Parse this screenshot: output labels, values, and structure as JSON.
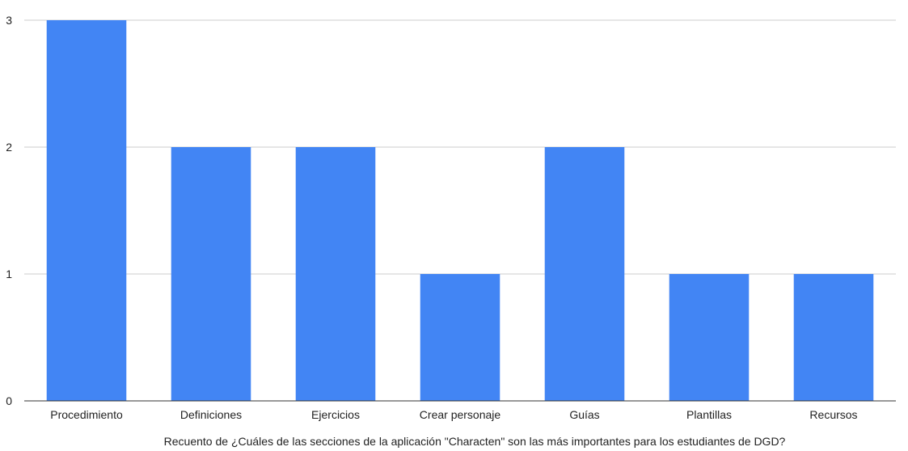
{
  "chart_data": {
    "type": "bar",
    "categories": [
      "Procedimiento",
      "Definiciones",
      "Ejercicios",
      "Crear personaje",
      "Guías",
      "Plantillas",
      "Recursos"
    ],
    "values": [
      3,
      2,
      2,
      1,
      2,
      1,
      1
    ],
    "title": "",
    "xlabel": "Recuento de ¿Cuáles de las secciones de la aplicación \"Characten\" son las más importantes para los estudiantes de DGD?",
    "ylabel": "",
    "ylim": [
      0,
      3
    ],
    "yticks": [
      "0",
      "1",
      "2",
      "3"
    ],
    "grid": true,
    "legend": "none",
    "colors": {
      "bar": "#4285f4"
    }
  }
}
